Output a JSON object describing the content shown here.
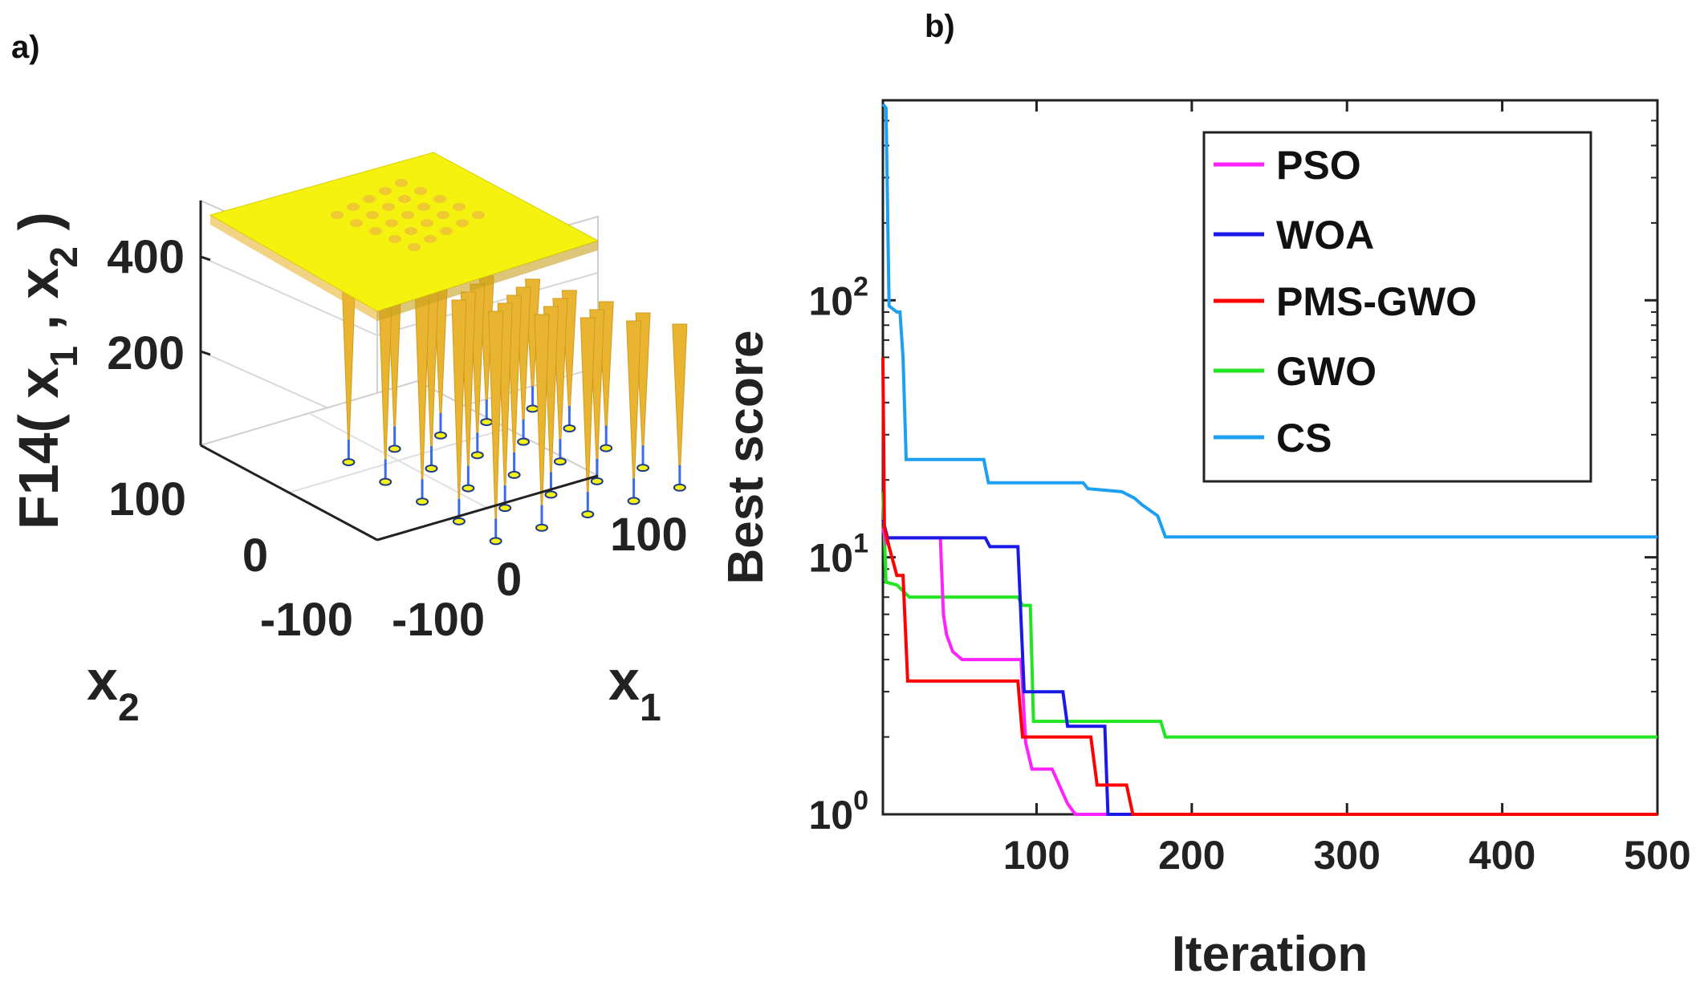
{
  "panel_a_label": "a)",
  "panel_b_label": "b)",
  "chart_data": [
    {
      "type": "surface3d",
      "zlabel_main": "F14( x",
      "zlabel_sub1": "1",
      "zlabel_mid": " , x",
      "zlabel_sub2": "2",
      "zlabel_end": " )",
      "xlabel_main": "x",
      "xlabel_sub": "1",
      "ylabel_main": "x",
      "ylabel_sub": "2",
      "z_ticks": [
        "200",
        "400"
      ],
      "x1_ticks": [
        "-100",
        "0",
        "100"
      ],
      "x2_ticks": [
        "-100",
        "0",
        "100"
      ],
      "surface_color": "#f5f20f",
      "spike_color": "#e9b531"
    },
    {
      "type": "line",
      "xlabel": "Iteration",
      "ylabel": "Best score",
      "yscale": "log",
      "xlim": [
        1,
        500
      ],
      "ylim": [
        1,
        600
      ],
      "x_ticks": [
        {
          "value": 100,
          "label": "100"
        },
        {
          "value": 200,
          "label": "200"
        },
        {
          "value": 300,
          "label": "300"
        },
        {
          "value": 400,
          "label": "400"
        },
        {
          "value": 500,
          "label": "500"
        }
      ],
      "y_ticks": [
        {
          "value": 1,
          "base": "10",
          "exp": "0"
        },
        {
          "value": 10,
          "base": "10",
          "exp": "1"
        },
        {
          "value": 100,
          "base": "10",
          "exp": "2"
        }
      ],
      "legend_position": "top-right",
      "series": [
        {
          "name": "PSO",
          "color": "#ff22ff",
          "points": [
            [
              1,
              13
            ],
            [
              3,
              11.5
            ],
            [
              4,
              11.9
            ],
            [
              38,
              11.9
            ],
            [
              40,
              6
            ],
            [
              42,
              5
            ],
            [
              46,
              4.3
            ],
            [
              52,
              4.0
            ],
            [
              90,
              4.0
            ],
            [
              93,
              1.9
            ],
            [
              97,
              1.5
            ],
            [
              110,
              1.5
            ],
            [
              120,
              1.1
            ],
            [
              125,
              1.0
            ],
            [
              500,
              1.0
            ]
          ]
        },
        {
          "name": "WOA",
          "color": "#1a1ae6",
          "points": [
            [
              1,
              14
            ],
            [
              4,
              11.9
            ],
            [
              67,
              11.9
            ],
            [
              70,
              11.0
            ],
            [
              88,
              11.0
            ],
            [
              92,
              3.0
            ],
            [
              117,
              3.0
            ],
            [
              120,
              2.2
            ],
            [
              144,
              2.2
            ],
            [
              146,
              1.0
            ],
            [
              500,
              1.0
            ]
          ]
        },
        {
          "name": "PMS-GWO",
          "color": "#ff0000",
          "points": [
            [
              1,
              60
            ],
            [
              2,
              13
            ],
            [
              5,
              11.0
            ],
            [
              10,
              8.5
            ],
            [
              14,
              8.5
            ],
            [
              17,
              3.3
            ],
            [
              88,
              3.3
            ],
            [
              91,
              2.0
            ],
            [
              135,
              2.0
            ],
            [
              139,
              1.3
            ],
            [
              158,
              1.3
            ],
            [
              162,
              1.0
            ],
            [
              500,
              1.0
            ]
          ]
        },
        {
          "name": "GWO",
          "color": "#22e622",
          "points": [
            [
              1,
              18
            ],
            [
              3,
              8.0
            ],
            [
              10,
              7.8
            ],
            [
              18,
              7.0
            ],
            [
              88,
              7.0
            ],
            [
              91,
              6.5
            ],
            [
              96,
              6.5
            ],
            [
              98,
              2.3
            ],
            [
              180,
              2.3
            ],
            [
              183,
              2.0
            ],
            [
              500,
              2.0
            ]
          ]
        },
        {
          "name": "CS",
          "color": "#1ea0f0",
          "points": [
            [
              1,
              580
            ],
            [
              3,
              560
            ],
            [
              5,
              95
            ],
            [
              10,
              90
            ],
            [
              12,
              90
            ],
            [
              14,
              60
            ],
            [
              16,
              24
            ],
            [
              66,
              24
            ],
            [
              69,
              19.5
            ],
            [
              130,
              19.5
            ],
            [
              133,
              18.5
            ],
            [
              155,
              18.0
            ],
            [
              163,
              17.0
            ],
            [
              168,
              16.0
            ],
            [
              178,
              14.5
            ],
            [
              183,
              12.0
            ],
            [
              500,
              12.0
            ]
          ]
        }
      ]
    }
  ]
}
